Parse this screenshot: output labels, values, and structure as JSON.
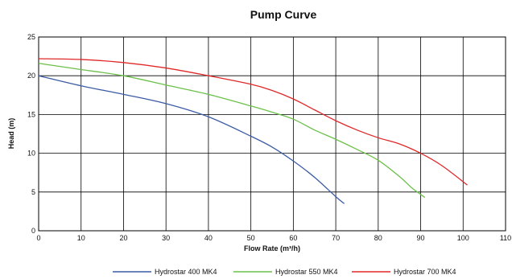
{
  "chart_data": {
    "type": "line",
    "title": "Pump Curve",
    "xlabel": "Flow Rate (m³/h)",
    "ylabel": "Head (m)",
    "xlim": [
      0,
      110
    ],
    "ylim": [
      0,
      25
    ],
    "xticks": [
      0,
      10,
      20,
      30,
      40,
      50,
      60,
      70,
      80,
      90,
      100,
      110
    ],
    "yticks": [
      0,
      5,
      10,
      15,
      20,
      25
    ],
    "grid": true,
    "legend_position": "bottom",
    "series": [
      {
        "name": "Hydrostar 400 MK4",
        "color": "#3b5ba5",
        "points": [
          [
            0,
            20
          ],
          [
            10,
            18.7
          ],
          [
            20,
            17.6
          ],
          [
            30,
            16.4
          ],
          [
            40,
            14.7
          ],
          [
            50,
            12.2
          ],
          [
            55,
            10.8
          ],
          [
            60,
            9.0
          ],
          [
            65,
            6.9
          ],
          [
            70,
            4.4
          ],
          [
            72,
            3.5
          ]
        ]
      },
      {
        "name": "Hydrostar 550 MK4",
        "color": "#6cc04a",
        "points": [
          [
            0,
            21.6
          ],
          [
            10,
            20.8
          ],
          [
            20,
            20.0
          ],
          [
            30,
            18.8
          ],
          [
            40,
            17.6
          ],
          [
            50,
            16.1
          ],
          [
            55,
            15.3
          ],
          [
            60,
            14.4
          ],
          [
            65,
            13.0
          ],
          [
            70,
            11.8
          ],
          [
            75,
            10.5
          ],
          [
            80,
            9.1
          ],
          [
            85,
            7.0
          ],
          [
            88,
            5.5
          ],
          [
            91,
            4.3
          ]
        ]
      },
      {
        "name": "Hydrostar 700 MK4",
        "color": "#e02828",
        "points": [
          [
            0,
            22.2
          ],
          [
            10,
            22.1
          ],
          [
            20,
            21.7
          ],
          [
            30,
            21.0
          ],
          [
            40,
            20.0
          ],
          [
            50,
            18.9
          ],
          [
            55,
            18.1
          ],
          [
            60,
            17.0
          ],
          [
            65,
            15.6
          ],
          [
            70,
            14.2
          ],
          [
            75,
            13.0
          ],
          [
            80,
            12.0
          ],
          [
            85,
            11.2
          ],
          [
            90,
            10.0
          ],
          [
            95,
            8.4
          ],
          [
            101,
            5.9
          ]
        ]
      }
    ]
  }
}
